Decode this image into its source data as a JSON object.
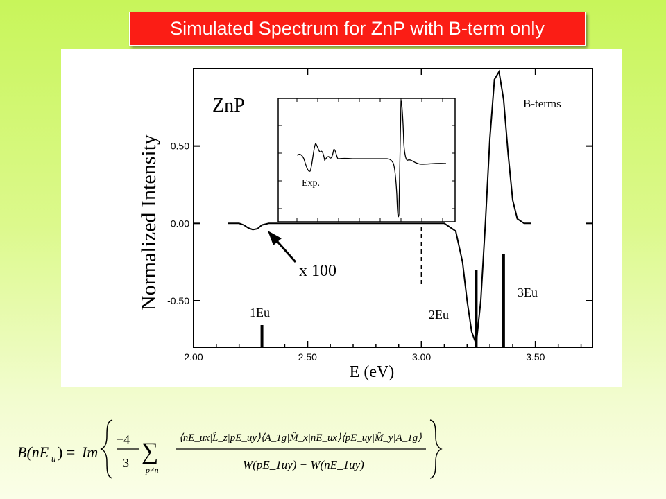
{
  "slide": {
    "title": "Simulated Spectrum for ZnP with B-term only"
  },
  "colors": {
    "title_bg": "#fb1d15",
    "title_text": "#ffffff",
    "background_top": "#c8f55a",
    "background_bottom": "#fbfee8"
  },
  "chart_data": {
    "type": "line",
    "title": "ZnP",
    "series_label": "B-terms",
    "xlabel": "E (eV)",
    "ylabel": "Normalized Intensity",
    "xlim": [
      2.0,
      3.75
    ],
    "ylim": [
      -0.8,
      1.0
    ],
    "x_ticks": [
      "2.00",
      "2.50",
      "3.00",
      "3.50"
    ],
    "y_ticks": [
      "0.50",
      "0.00",
      "-0.50"
    ],
    "grid": false,
    "series": [
      {
        "x": [
          2.15,
          2.2,
          2.22,
          2.24,
          2.26,
          2.28,
          2.3,
          2.33,
          2.4,
          2.6,
          2.8,
          3.0,
          3.1,
          3.15,
          3.18,
          3.2,
          3.22,
          3.24,
          3.26,
          3.28,
          3.3,
          3.32,
          3.34,
          3.36,
          3.38,
          3.4,
          3.42,
          3.45,
          3.48
        ],
        "y": [
          0.0,
          0.0,
          -0.01,
          -0.03,
          -0.04,
          -0.035,
          -0.01,
          0.0,
          0.0,
          0.0,
          0.0,
          0.0,
          0.0,
          -0.05,
          -0.25,
          -0.5,
          -0.7,
          -0.78,
          -0.5,
          0.0,
          0.55,
          0.93,
          0.98,
          0.8,
          0.45,
          0.15,
          0.03,
          0.0,
          0.0
        ]
      }
    ],
    "transitions": [
      {
        "label": "1Eu",
        "x": 2.3
      },
      {
        "label": "2Eu",
        "x": 3.24
      },
      {
        "label": "3Eu",
        "x": 3.36
      }
    ],
    "dashed_marker_x": 3.0,
    "annotation": "x 100",
    "inset_label": "Exp."
  },
  "formula": {
    "lhs": "B(nE",
    "lhs_sub": "u",
    "lhs_close": ") =",
    "im": "Im",
    "coef_num": "−4",
    "coef_den": "3",
    "sum": "∑",
    "sum_sub": "p≠n",
    "numerator": "⟨nE_ux|L̂_z|pE_uy⟩⟨A_1g|M̂_x|nE_ux⟩⟨pE_uy|M̂_y|A_1g⟩",
    "denominator": "W(pE_1uy) − W(nE_1uy)"
  }
}
